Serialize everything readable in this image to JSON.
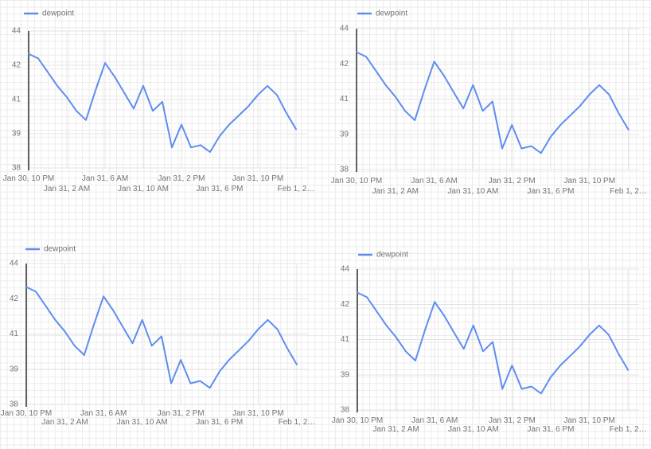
{
  "colors": {
    "line": "#5f8dee",
    "axis": "#616161",
    "label": "#757575",
    "grid_minor": "#ebebeb",
    "grid_major": "#e4e4e4",
    "background": "#ffffff"
  },
  "chart_data": {
    "type": "line",
    "title": "",
    "legend": [
      "dewpoint"
    ],
    "legend_position": "top-left",
    "grid": true,
    "x_start": "Jan 30, 10 PM",
    "x_end": "Feb 1, 2 AM",
    "x_interval_hours": 1,
    "x_tick_labels": [
      "Jan 30, 10 PM",
      "Jan 31, 2 AM",
      "Jan 31, 6 AM",
      "Jan 31, 10 AM",
      "Jan 31, 2 PM",
      "Jan 31, 6 PM",
      "Jan 31, 10 PM",
      "Feb 1, 2…"
    ],
    "y_tick_labels": [
      "44",
      "42",
      "41",
      "39",
      "38"
    ],
    "y_tick_values": [
      44,
      42.5,
      41,
      39.5,
      38
    ],
    "ylim": [
      38,
      44
    ],
    "series": [
      {
        "name": "dewpoint",
        "color": "#5f8dee",
        "values": [
          43.0,
          42.8,
          42.2,
          41.6,
          41.1,
          40.5,
          40.1,
          41.4,
          42.6,
          42.0,
          41.3,
          40.6,
          41.6,
          40.5,
          40.9,
          38.9,
          39.9,
          38.9,
          39.0,
          38.7,
          39.4,
          39.9,
          40.3,
          40.7,
          41.2,
          41.6,
          41.2,
          40.4,
          39.7
        ]
      }
    ]
  },
  "panels": [
    {
      "id": "top-left",
      "legend_label": "dewpoint"
    },
    {
      "id": "top-right",
      "legend_label": "dewpoint"
    },
    {
      "id": "bottom-left",
      "legend_label": "dewpoint"
    },
    {
      "id": "bottom-right",
      "legend_label": "dewpoint"
    }
  ]
}
